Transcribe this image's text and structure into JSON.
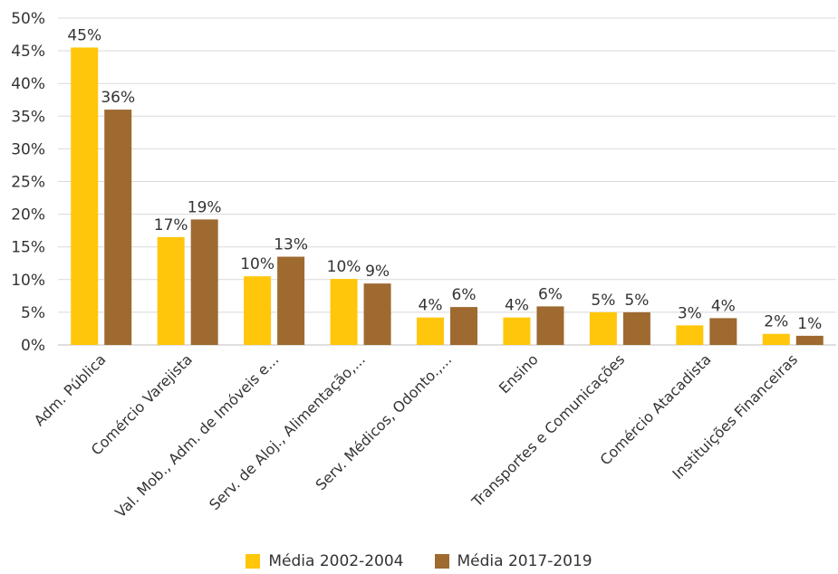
{
  "chart_data": {
    "type": "bar",
    "categories": [
      "Adm. Pública",
      "Comércio Varejista",
      "Val. Mob., Adm. de Imóveis e...",
      "Serv. de Aloj., Alimentação,...",
      "Serv. Médicos, Odonto.,...",
      "Ensino",
      "Transportes e Comunicações",
      "Comércio Atacadista",
      "Instituições Financeiras"
    ],
    "series": [
      {
        "name": "Média 2002-2004",
        "color": "#FFC60B",
        "values": [
          45.5,
          16.5,
          10.5,
          10.1,
          4.2,
          4.2,
          5.0,
          3.0,
          1.7
        ],
        "labels": [
          "45%",
          "17%",
          "10%",
          "10%",
          "4%",
          "4%",
          "5%",
          "3%",
          "2%"
        ]
      },
      {
        "name": "Média 2017-2019",
        "color": "#9E6A30",
        "values": [
          36.0,
          19.2,
          13.5,
          9.4,
          5.8,
          5.9,
          5.0,
          4.1,
          1.4
        ],
        "labels": [
          "36%",
          "19%",
          "13%",
          "9%",
          "6%",
          "6%",
          "5%",
          "4%",
          "1%"
        ]
      }
    ],
    "y_ticks": [
      "0%",
      "5%",
      "10%",
      "15%",
      "20%",
      "25%",
      "30%",
      "35%",
      "40%",
      "45%",
      "50%"
    ],
    "ylim": [
      0,
      50
    ],
    "title": "",
    "xlabel": "",
    "ylabel": "",
    "grid": true,
    "legend": "bottom-center"
  }
}
